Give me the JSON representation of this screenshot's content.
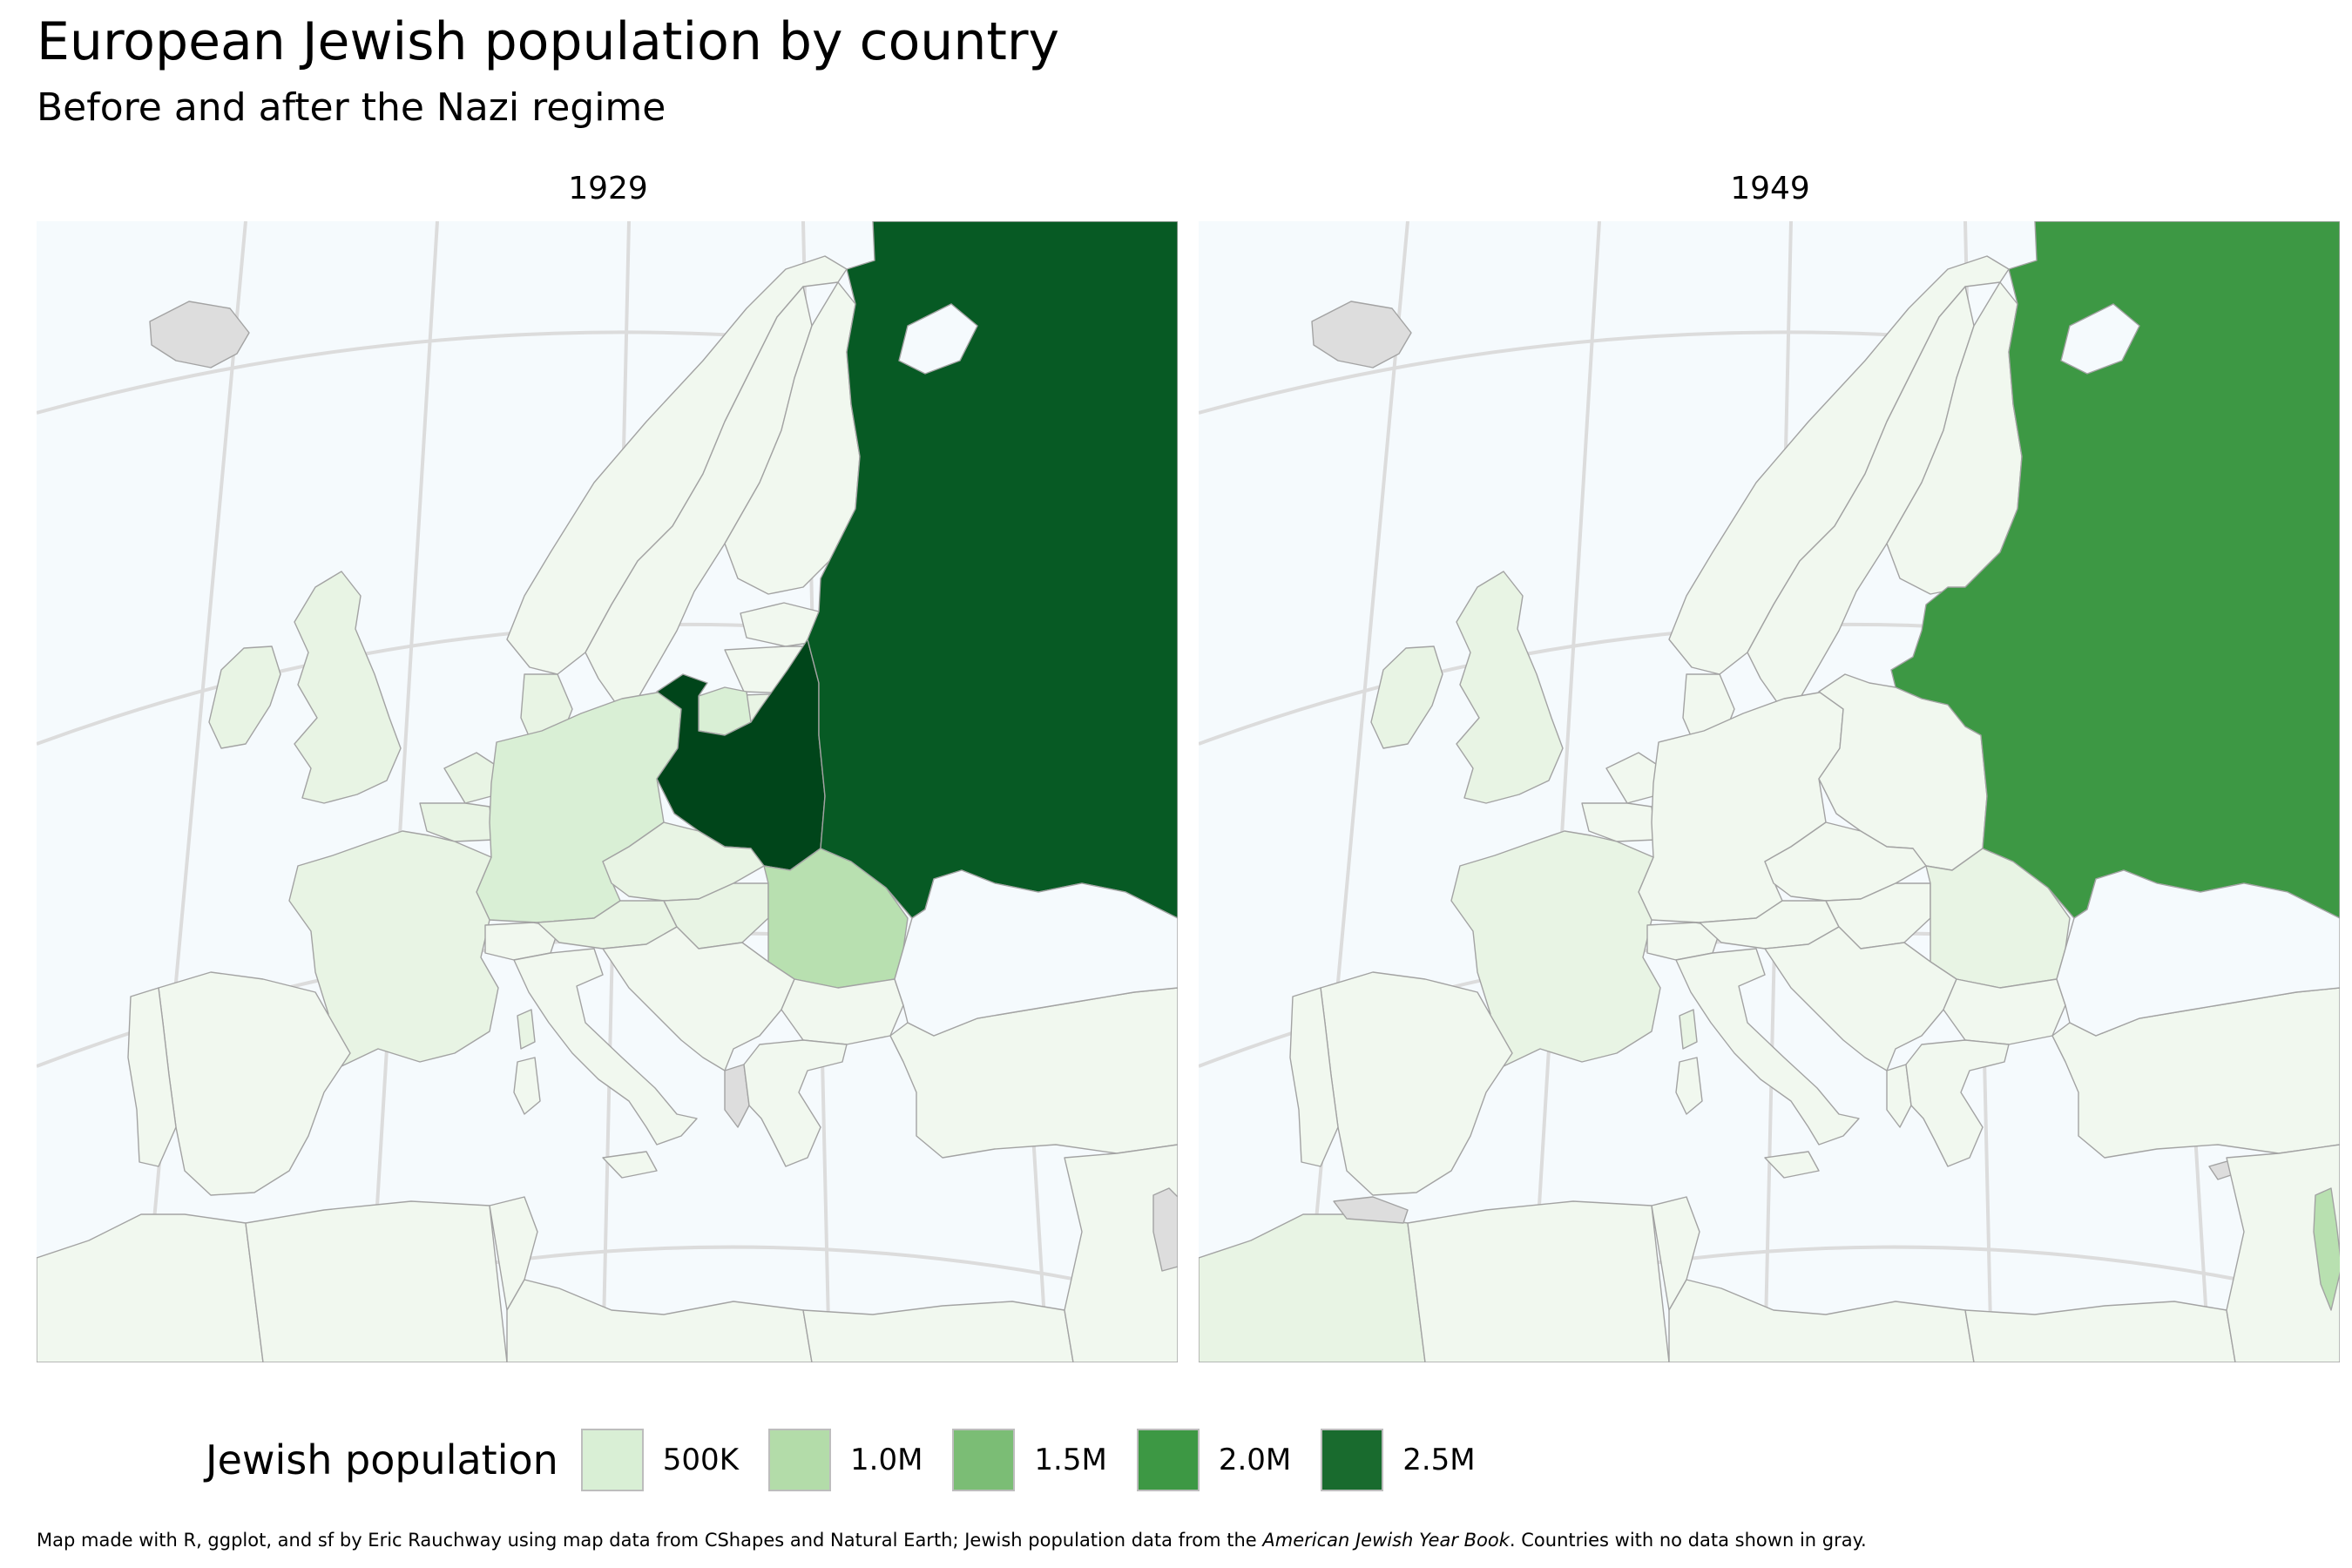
{
  "title": "European Jewish population by country",
  "subtitle": "Before and after the Nazi regime",
  "panels": [
    {
      "label": "1929"
    },
    {
      "label": "1949"
    }
  ],
  "legend": {
    "title": "Jewish population",
    "items": [
      {
        "label": "500K",
        "value": 500000,
        "color": "#d9efd5"
      },
      {
        "label": "1.0M",
        "value": 1000000,
        "color": "#b3dca9"
      },
      {
        "label": "1.5M",
        "value": 1500000,
        "color": "#7bbd75"
      },
      {
        "label": "2.0M",
        "value": 2000000,
        "color": "#3d9844"
      },
      {
        "label": "2.5M",
        "value": 2500000,
        "color": "#196b2e"
      }
    ]
  },
  "caption": {
    "before": "Map made with R, ggplot, and sf by Eric Rauchway using map data from CShapes and Natural Earth; Jewish population data from the ",
    "source": "American Jewish Year Book",
    "after": ". Countries with no data shown in gray."
  },
  "colors": {
    "sea": "#f5fafd",
    "graticule": "#dcdcdc",
    "border": "#a3a3a3",
    "no_data": "#dddddd",
    "near_zero": "#f1f8ef",
    "small": "#e8f4e4",
    "p500k": "#d9efd5",
    "p1m": "#b8e0b0",
    "p2m": "#3d9844",
    "p2_5m": "#075a24",
    "p3m": "#00451a"
  }
}
